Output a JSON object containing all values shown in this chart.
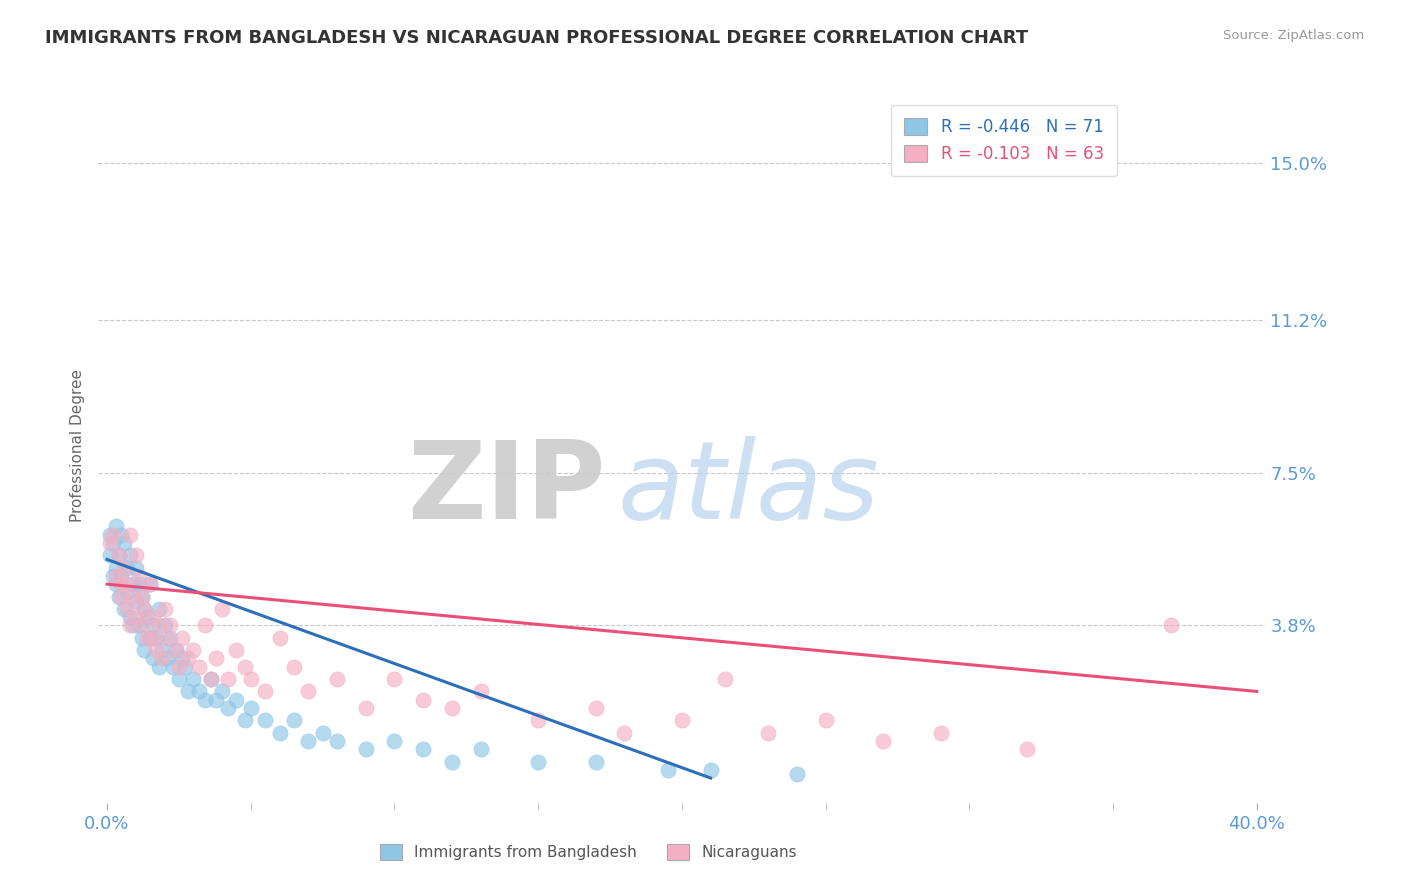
{
  "title": "IMMIGRANTS FROM BANGLADESH VS NICARAGUAN PROFESSIONAL DEGREE CORRELATION CHART",
  "source": "Source: ZipAtlas.com",
  "ylabel": "Professional Degree",
  "ytick_labels": [
    "3.8%",
    "7.5%",
    "11.2%",
    "15.0%"
  ],
  "ytick_values": [
    0.038,
    0.075,
    0.112,
    0.15
  ],
  "xlim": [
    -0.003,
    0.403
  ],
  "ylim": [
    -0.005,
    0.168
  ],
  "legend_r1": "R = -0.446",
  "legend_n1": "N = 71",
  "legend_r2": "R = -0.103",
  "legend_n2": "N = 63",
  "color_blue": "#8ec6e6",
  "color_pink": "#f4afc4",
  "line_color_blue": "#2e6fba",
  "line_color_pink": "#e8507a",
  "bg_color": "#ffffff",
  "title_color": "#333333",
  "axis_label_color": "#5b9bd5",
  "grid_color": "#c8c8c8",
  "bangladesh_x": [
    0.001,
    0.001,
    0.002,
    0.002,
    0.003,
    0.003,
    0.003,
    0.004,
    0.004,
    0.005,
    0.005,
    0.006,
    0.006,
    0.007,
    0.007,
    0.008,
    0.008,
    0.009,
    0.009,
    0.01,
    0.01,
    0.011,
    0.011,
    0.012,
    0.012,
    0.013,
    0.013,
    0.014,
    0.015,
    0.015,
    0.016,
    0.016,
    0.017,
    0.018,
    0.018,
    0.019,
    0.02,
    0.021,
    0.022,
    0.023,
    0.024,
    0.025,
    0.026,
    0.027,
    0.028,
    0.03,
    0.032,
    0.034,
    0.036,
    0.038,
    0.04,
    0.042,
    0.045,
    0.048,
    0.05,
    0.055,
    0.06,
    0.065,
    0.07,
    0.075,
    0.08,
    0.09,
    0.1,
    0.11,
    0.12,
    0.13,
    0.15,
    0.17,
    0.195,
    0.21,
    0.24
  ],
  "bangladesh_y": [
    0.06,
    0.055,
    0.058,
    0.05,
    0.062,
    0.052,
    0.048,
    0.055,
    0.045,
    0.06,
    0.05,
    0.058,
    0.042,
    0.052,
    0.046,
    0.055,
    0.04,
    0.048,
    0.038,
    0.052,
    0.044,
    0.048,
    0.038,
    0.045,
    0.035,
    0.042,
    0.032,
    0.04,
    0.048,
    0.035,
    0.038,
    0.03,
    0.035,
    0.042,
    0.028,
    0.032,
    0.038,
    0.03,
    0.035,
    0.028,
    0.032,
    0.025,
    0.03,
    0.028,
    0.022,
    0.025,
    0.022,
    0.02,
    0.025,
    0.02,
    0.022,
    0.018,
    0.02,
    0.015,
    0.018,
    0.015,
    0.012,
    0.015,
    0.01,
    0.012,
    0.01,
    0.008,
    0.01,
    0.008,
    0.005,
    0.008,
    0.005,
    0.005,
    0.003,
    0.003,
    0.002
  ],
  "nicaraguan_x": [
    0.001,
    0.002,
    0.003,
    0.004,
    0.005,
    0.005,
    0.006,
    0.007,
    0.007,
    0.008,
    0.008,
    0.009,
    0.01,
    0.01,
    0.011,
    0.012,
    0.012,
    0.013,
    0.014,
    0.015,
    0.016,
    0.016,
    0.017,
    0.018,
    0.019,
    0.02,
    0.021,
    0.022,
    0.024,
    0.025,
    0.026,
    0.028,
    0.03,
    0.032,
    0.034,
    0.036,
    0.038,
    0.04,
    0.042,
    0.045,
    0.048,
    0.05,
    0.055,
    0.06,
    0.065,
    0.07,
    0.08,
    0.09,
    0.1,
    0.11,
    0.12,
    0.13,
    0.15,
    0.17,
    0.18,
    0.2,
    0.215,
    0.23,
    0.25,
    0.27,
    0.29,
    0.32,
    0.37
  ],
  "nicaraguan_y": [
    0.058,
    0.06,
    0.05,
    0.055,
    0.048,
    0.045,
    0.052,
    0.042,
    0.048,
    0.06,
    0.038,
    0.045,
    0.055,
    0.04,
    0.05,
    0.038,
    0.045,
    0.042,
    0.035,
    0.048,
    0.04,
    0.035,
    0.032,
    0.038,
    0.03,
    0.042,
    0.035,
    0.038,
    0.032,
    0.028,
    0.035,
    0.03,
    0.032,
    0.028,
    0.038,
    0.025,
    0.03,
    0.042,
    0.025,
    0.032,
    0.028,
    0.025,
    0.022,
    0.035,
    0.028,
    0.022,
    0.025,
    0.018,
    0.025,
    0.02,
    0.018,
    0.022,
    0.015,
    0.018,
    0.012,
    0.015,
    0.025,
    0.012,
    0.015,
    0.01,
    0.012,
    0.008,
    0.038
  ],
  "blue_line_x0": 0.0,
  "blue_line_y0": 0.054,
  "blue_line_x1": 0.21,
  "blue_line_y1": 0.001,
  "pink_line_x0": 0.0,
  "pink_line_y0": 0.048,
  "pink_line_x1": 0.4,
  "pink_line_y1": 0.022
}
